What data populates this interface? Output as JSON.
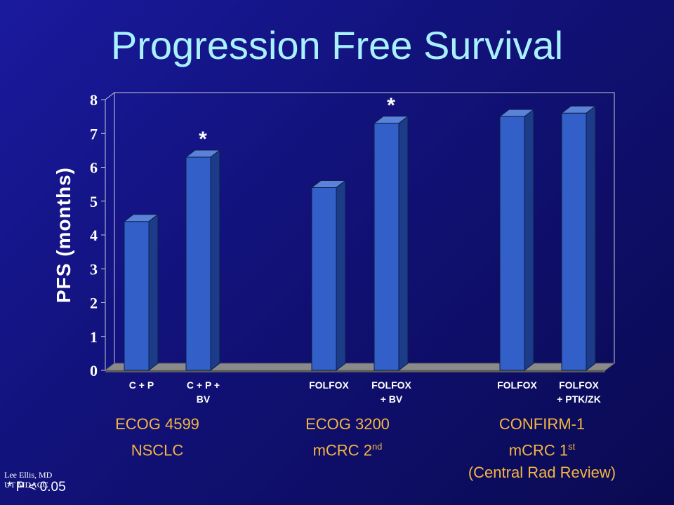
{
  "title": "Progression Free Survival",
  "colors": {
    "bar_front": "#3360c8",
    "bar_side": "#1c3b88",
    "bar_top": "#5a82d8",
    "floor": "#8a8a8a",
    "title": "#a8f2ff",
    "group_text": "#f5b640"
  },
  "chart_data": {
    "type": "bar",
    "title": "Progression Free Survival",
    "ylabel": "PFS (months)",
    "ylim": [
      0,
      8
    ],
    "yticks": [
      0,
      1,
      2,
      3,
      4,
      5,
      6,
      7,
      8
    ],
    "grid": false,
    "categories": [
      [
        "C + P"
      ],
      [
        "C + P +",
        "BV"
      ],
      [
        "FOLFOX"
      ],
      [
        "FOLFOX",
        "+ BV"
      ],
      [
        "FOLFOX"
      ],
      [
        "FOLFOX",
        "+ PTK/ZK"
      ]
    ],
    "values": [
      4.4,
      6.3,
      5.4,
      7.3,
      7.5,
      7.6
    ],
    "significant": [
      false,
      true,
      false,
      true,
      false,
      false
    ],
    "significance_marker": "*",
    "groups": [
      {
        "line1": "ECOG 4599",
        "line2": "NSCLC",
        "line2_sup": "",
        "line3": ""
      },
      {
        "line1": "ECOG 3200",
        "line2": "mCRC 2",
        "line2_sup": "nd",
        "line3": ""
      },
      {
        "line1": "CONFIRM-1",
        "line2": "mCRC 1",
        "line2_sup": "st",
        "line3": "(Central Rad Review)"
      }
    ]
  },
  "footnote": "* P < 0.05",
  "credit": {
    "line1": "Lee Ellis, MD",
    "line2": "UT MDACC"
  }
}
